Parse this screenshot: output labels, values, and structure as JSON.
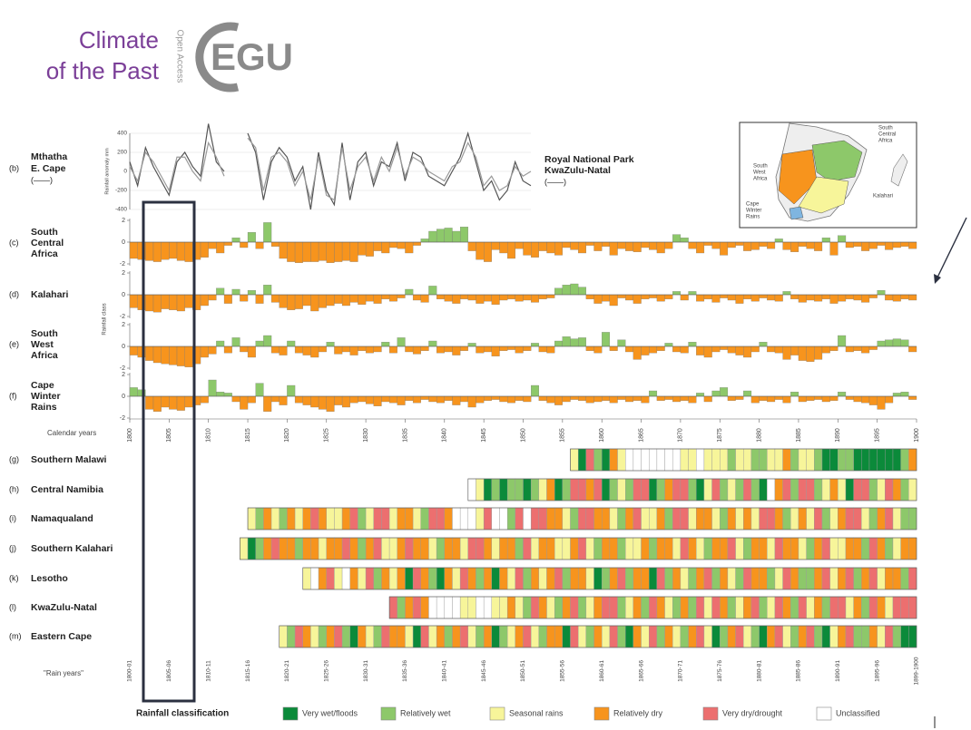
{
  "logo": {
    "line1": "Climate",
    "line2": "of the Past",
    "open": "Open Access",
    "egu": "EGU"
  },
  "anomaly": {
    "panel": "(b)",
    "left_label": [
      "Mthatha",
      "E. Cape"
    ],
    "left_key": "(——)",
    "right_label": [
      "Royal National Park",
      "KwaZulu-Natal"
    ],
    "right_key": "(——)",
    "ylabel": "Rainfall anomaly mm",
    "ylim": [
      -400,
      400
    ],
    "yticks": [
      400,
      200,
      0,
      -200,
      -400
    ],
    "xlim": [
      1800,
      1851
    ],
    "x": [
      1800,
      1801,
      1802,
      1803,
      1804,
      1805,
      1806,
      1807,
      1808,
      1809,
      1810,
      1811,
      1812,
      1813,
      1814,
      1815,
      1816,
      1817,
      1818,
      1819,
      1820,
      1821,
      1822,
      1823,
      1824,
      1825,
      1826,
      1827,
      1828,
      1829,
      1830,
      1831,
      1832,
      1833,
      1834,
      1835,
      1836,
      1837,
      1838,
      1839,
      1840,
      1841,
      1842,
      1843,
      1844,
      1845,
      1846,
      1847,
      1848,
      1849,
      1850,
      1851
    ],
    "series": [
      {
        "color": "#555555",
        "values": [
          100,
          -150,
          250,
          50,
          -100,
          -250,
          100,
          200,
          50,
          -50,
          500,
          100,
          0,
          null,
          null,
          400,
          200,
          -300,
          100,
          250,
          150,
          -100,
          50,
          -400,
          200,
          -200,
          -350,
          300,
          -300,
          100,
          200,
          -150,
          100,
          50,
          300,
          -100,
          200,
          150,
          -50,
          -100,
          -150,
          0,
          150,
          400,
          100,
          -200,
          -100,
          -300,
          -200,
          100,
          -100,
          -150
        ]
      },
      {
        "color": "#9a9a9a",
        "values": [
          50,
          -100,
          200,
          100,
          -50,
          -200,
          150,
          150,
          0,
          -100,
          300,
          150,
          -50,
          null,
          null,
          350,
          250,
          -200,
          150,
          200,
          100,
          -150,
          0,
          -300,
          150,
          -250,
          -300,
          250,
          -200,
          50,
          150,
          -100,
          150,
          0,
          250,
          -50,
          150,
          100,
          0,
          -50,
          -100,
          50,
          100,
          300,
          150,
          -150,
          -50,
          -200,
          -150,
          50,
          -50,
          0
        ]
      }
    ]
  },
  "class_panels": {
    "ylabel": "Rainfall class",
    "ylim": [
      -2,
      2
    ],
    "yticks": [
      2,
      0,
      -2
    ],
    "xlim": [
      1800,
      1900
    ],
    "xlabel": "Calendar years",
    "xticks": [
      1800,
      1805,
      1810,
      1815,
      1820,
      1825,
      1830,
      1835,
      1840,
      1845,
      1850,
      1855,
      1860,
      1865,
      1870,
      1875,
      1880,
      1885,
      1890,
      1895,
      1900
    ],
    "start": 1800,
    "positive_color": "#8dc86a",
    "negative_color": "#f7941d",
    "panels": [
      {
        "id": "(c)",
        "name": [
          "South",
          "Central",
          "Africa"
        ],
        "values": [
          -1.5,
          -1.6,
          -1.7,
          -1.8,
          -1.6,
          -1.5,
          -1.7,
          -1.8,
          -1.6,
          -1.4,
          -0.6,
          -1.0,
          -0.3,
          0.4,
          -0.5,
          0.9,
          -0.6,
          1.8,
          -0.4,
          -1.5,
          -1.8,
          -1.9,
          -1.8,
          -1.8,
          -1.7,
          -1.9,
          -1.8,
          -1.7,
          -1.8,
          -1.2,
          -1.3,
          -0.8,
          -1.0,
          -0.5,
          -0.6,
          -1.0,
          -0.3,
          0.3,
          1.0,
          1.2,
          1.3,
          1.0,
          1.4,
          -0.8,
          -1.6,
          -1.8,
          -0.7,
          -1.0,
          -1.5,
          -0.6,
          -1.2,
          -1.4,
          -0.8,
          -1.0,
          -1.2,
          -0.5,
          -0.7,
          -1.0,
          -0.3,
          -0.8,
          -0.4,
          -1.2,
          -0.6,
          -0.8,
          -0.9,
          -0.5,
          -0.7,
          -1.0,
          -0.6,
          0.7,
          0.4,
          -0.6,
          -1.0,
          -0.3,
          -0.6,
          -1.2,
          -0.5,
          -0.3,
          -0.8,
          -0.7,
          -0.4,
          -0.6,
          0.3,
          -0.7,
          -0.9,
          -0.4,
          -0.6,
          -0.8,
          0.4,
          -1.2,
          0.6,
          -0.5,
          -0.4,
          -0.8,
          -0.6,
          -0.3,
          -0.7,
          -0.5,
          -0.4,
          -0.6
        ]
      },
      {
        "id": "(d)",
        "name": [
          "Kalahari"
        ],
        "values": [
          -1.2,
          -1.4,
          -1.5,
          -1.6,
          -1.3,
          -1.4,
          -1.5,
          -1.2,
          -1.4,
          -1.0,
          -0.5,
          0.6,
          -0.8,
          0.5,
          -0.6,
          0.4,
          -0.8,
          0.9,
          -0.7,
          -1.2,
          -1.4,
          -1.3,
          -1.0,
          -1.5,
          -1.2,
          -1.0,
          -0.8,
          -1.0,
          -0.7,
          -0.9,
          -0.6,
          -0.8,
          -0.4,
          -0.6,
          -0.3,
          0.5,
          -0.5,
          -0.7,
          0.8,
          -0.4,
          -0.6,
          -0.8,
          -0.4,
          -0.5,
          -0.8,
          -0.6,
          -0.9,
          -0.5,
          -0.4,
          -0.6,
          -0.5,
          -0.7,
          -0.4,
          -0.3,
          0.6,
          0.9,
          1.0,
          0.7,
          -0.4,
          -0.8,
          -0.6,
          -1.0,
          -0.3,
          -0.5,
          -0.8,
          -0.4,
          -0.3,
          -0.6,
          -0.4,
          0.3,
          -0.5,
          0.3,
          -0.6,
          -0.4,
          -0.7,
          -0.3,
          -0.5,
          -0.8,
          -0.4,
          -0.6,
          -0.3,
          -0.5,
          -0.6,
          0.3,
          -0.4,
          -0.7,
          -0.5,
          -0.6,
          -0.4,
          -0.8,
          -0.6,
          -0.4,
          -0.5,
          -0.7,
          -0.3,
          0.4,
          -0.5,
          -0.6,
          -0.4,
          -0.5
        ]
      },
      {
        "id": "(e)",
        "name": [
          "South",
          "West",
          "Africa"
        ],
        "values": [
          -0.8,
          -1.0,
          -1.3,
          -1.5,
          -1.6,
          -1.7,
          -1.8,
          -1.9,
          -1.6,
          -1.0,
          -0.7,
          0.5,
          -0.6,
          0.8,
          -0.5,
          -1.0,
          0.5,
          1.0,
          -0.6,
          -0.8,
          0.5,
          -0.6,
          -0.8,
          -1.0,
          -0.5,
          0.4,
          -0.7,
          -0.5,
          -0.8,
          -0.4,
          -0.6,
          -0.5,
          0.4,
          -0.6,
          0.8,
          -0.5,
          -0.7,
          -0.4,
          0.5,
          -0.6,
          -0.5,
          -0.8,
          -0.4,
          0.3,
          -0.6,
          -0.5,
          -0.9,
          -0.4,
          -0.3,
          -0.6,
          -0.4,
          0.3,
          -0.5,
          -0.6,
          0.5,
          0.9,
          0.7,
          0.8,
          -0.4,
          -0.6,
          1.3,
          -0.4,
          0.6,
          -0.5,
          -1.2,
          -0.8,
          -0.6,
          -0.4,
          0.3,
          -0.5,
          -0.6,
          0.4,
          -0.8,
          -1.0,
          -0.5,
          -0.3,
          -0.6,
          -0.8,
          -1.0,
          -0.5,
          0.4,
          -0.5,
          -0.6,
          -1.2,
          -0.8,
          -1.3,
          -1.4,
          -1.2,
          -0.6,
          -0.4,
          1.0,
          -0.5,
          -0.4,
          -0.6,
          -0.3,
          0.5,
          0.6,
          0.7,
          0.6,
          -0.5
        ]
      },
      {
        "id": "(f)",
        "name": [
          "Cape",
          "Winter",
          "Rains"
        ],
        "values": [
          0.8,
          0.6,
          -1.2,
          -1.4,
          -1.0,
          -1.2,
          -1.3,
          -1.0,
          -0.8,
          -0.6,
          1.5,
          0.4,
          0.3,
          -0.5,
          -1.2,
          -0.6,
          1.2,
          -1.4,
          -0.5,
          -0.8,
          1.0,
          -0.6,
          -0.8,
          -1.0,
          -1.2,
          -1.4,
          -0.8,
          -1.0,
          -0.6,
          -0.5,
          -0.7,
          -0.9,
          -0.5,
          -0.6,
          -0.8,
          -0.4,
          -0.6,
          -0.3,
          -0.5,
          -0.6,
          -0.4,
          -0.8,
          -0.5,
          -1.0,
          -0.6,
          -0.4,
          -0.3,
          -0.5,
          -0.6,
          -0.4,
          -0.5,
          1.0,
          -0.4,
          -0.6,
          -0.8,
          -0.5,
          -0.3,
          -0.4,
          -0.6,
          -0.5,
          -0.4,
          -0.6,
          -0.3,
          -0.5,
          -0.4,
          -0.6,
          0.5,
          -0.4,
          -0.3,
          -0.5,
          -0.4,
          -0.6,
          0.3,
          -0.5,
          0.5,
          0.8,
          -0.4,
          -0.3,
          0.5,
          -0.6,
          -0.4,
          -0.5,
          -0.3,
          -0.6,
          0.4,
          -0.5,
          -0.4,
          -0.3,
          -0.5,
          -0.4,
          0.4,
          -0.3,
          -0.5,
          -0.6,
          -0.8,
          -1.2,
          -0.6,
          0.3,
          0.4,
          -0.3
        ]
      }
    ]
  },
  "rain": {
    "xlabel": "\"Rain years\"",
    "xticks": [
      "1800-01",
      "1805-06",
      "1810-11",
      "1815-16",
      "1820-21",
      "1825-26",
      "1830-31",
      "1835-36",
      "1840-41",
      "1845-46",
      "1850-51",
      "1855-56",
      "1860-61",
      "1865-66",
      "1870-71",
      "1875-76",
      "1880-81",
      "1885-86",
      "1890-91",
      "1895-96",
      "1899-1900"
    ],
    "rows": [
      {
        "id": "(g)",
        "name": "Southern Malawi",
        "start": 1856,
        "classes": [
          2,
          0,
          4,
          1,
          0,
          3,
          2,
          5,
          5,
          5,
          5,
          5,
          5,
          5,
          2,
          2,
          5,
          2,
          2,
          2,
          1,
          2,
          2,
          1,
          1,
          2,
          2,
          3,
          1,
          2,
          2,
          1,
          0,
          0,
          1,
          1,
          0,
          0,
          0,
          0,
          0,
          0,
          1,
          3
        ]
      },
      {
        "id": "(h)",
        "name": "Central Namibia",
        "start": 1843,
        "classes": [
          5,
          2,
          0,
          1,
          0,
          1,
          1,
          0,
          1,
          2,
          3,
          0,
          1,
          4,
          4,
          3,
          4,
          0,
          1,
          2,
          1,
          4,
          4,
          0,
          1,
          3,
          4,
          4,
          1,
          0,
          2,
          4,
          1,
          2,
          1,
          4,
          1,
          0,
          5,
          3,
          4,
          1,
          4,
          4,
          1,
          2,
          3,
          2,
          0,
          4,
          4,
          1,
          2,
          4,
          3,
          1,
          2
        ]
      },
      {
        "id": "(i)",
        "name": "Namaqualand",
        "start": 1815,
        "classes": [
          2,
          1,
          3,
          2,
          1,
          3,
          2,
          3,
          4,
          3,
          2,
          2,
          3,
          4,
          1,
          2,
          4,
          4,
          2,
          3,
          3,
          2,
          1,
          4,
          4,
          3,
          5,
          5,
          5,
          2,
          4,
          5,
          5,
          1,
          4,
          5,
          4,
          4,
          3,
          3,
          2,
          1,
          4,
          4,
          3,
          3,
          2,
          1,
          3,
          4,
          2,
          2,
          3,
          1,
          4,
          4,
          2,
          3,
          3,
          2,
          1,
          3,
          2,
          3,
          2,
          4,
          4,
          3,
          1,
          2,
          3,
          2,
          4,
          1,
          2,
          3,
          4,
          4,
          2,
          1,
          3,
          4,
          2,
          1,
          1
        ]
      },
      {
        "id": "(j)",
        "name": "Southern Kalahari",
        "start": 1814,
        "classes": [
          2,
          0,
          1,
          3,
          4,
          3,
          3,
          1,
          3,
          3,
          2,
          3,
          3,
          4,
          3,
          1,
          3,
          4,
          2,
          2,
          3,
          4,
          3,
          3,
          2,
          1,
          3,
          3,
          2,
          4,
          4,
          3,
          2,
          3,
          3,
          1,
          4,
          2,
          3,
          3,
          2,
          2,
          3,
          4,
          2,
          1,
          3,
          3,
          1,
          2,
          2,
          3,
          1,
          3,
          3,
          2,
          4,
          3,
          2,
          1,
          3,
          3,
          4,
          2,
          1,
          3,
          3,
          2,
          4,
          3,
          3,
          2,
          1,
          3,
          4,
          2,
          2,
          3,
          3,
          1,
          4,
          3,
          1,
          2,
          3,
          3
        ]
      },
      {
        "id": "(k)",
        "name": "Lesotho",
        "start": 1822,
        "classes": [
          2,
          5,
          3,
          4,
          2,
          5,
          3,
          2,
          4,
          1,
          3,
          2,
          3,
          0,
          4,
          3,
          1,
          0,
          3,
          2,
          4,
          3,
          1,
          3,
          0,
          3,
          2,
          4,
          1,
          3,
          2,
          3,
          4,
          1,
          3,
          3,
          2,
          0,
          1,
          3,
          4,
          1,
          3,
          3,
          0,
          4,
          1,
          3,
          2,
          1,
          3,
          4,
          1,
          3,
          2,
          1,
          4,
          3,
          3,
          1,
          2,
          4,
          3,
          1,
          1,
          3,
          4,
          2,
          3,
          4,
          1,
          3,
          4,
          2,
          3,
          3,
          1,
          4
        ]
      },
      {
        "id": "(l)",
        "name": "KwaZulu-Natal",
        "start": 1833,
        "classes": [
          4,
          1,
          3,
          4,
          3,
          5,
          5,
          5,
          5,
          2,
          2,
          5,
          5,
          2,
          2,
          3,
          2,
          1,
          4,
          3,
          2,
          1,
          3,
          4,
          1,
          2,
          3,
          4,
          4,
          1,
          2,
          3,
          1,
          4,
          3,
          2,
          1,
          3,
          1,
          4,
          2,
          4,
          3,
          1,
          2,
          3,
          4,
          1,
          2,
          4,
          3,
          1,
          4,
          2,
          3,
          1,
          4,
          4,
          2,
          3,
          1,
          4,
          3,
          2,
          4,
          4,
          4
        ]
      },
      {
        "id": "(m)",
        "name": "Eastern Cape",
        "start": 1819,
        "classes": [
          2,
          1,
          4,
          3,
          2,
          1,
          3,
          4,
          1,
          0,
          3,
          2,
          1,
          4,
          3,
          3,
          2,
          0,
          4,
          2,
          3,
          1,
          3,
          4,
          2,
          1,
          3,
          0,
          1,
          2,
          3,
          4,
          2,
          1,
          3,
          3,
          0,
          4,
          2,
          1,
          3,
          2,
          4,
          1,
          0,
          3,
          2,
          4,
          1,
          3,
          2,
          1,
          3,
          4,
          2,
          0,
          1,
          3,
          4,
          2,
          1,
          0,
          3,
          4,
          2,
          1,
          3,
          4,
          1,
          0,
          2,
          3,
          4,
          1,
          1,
          3,
          2,
          4,
          1,
          0,
          0
        ]
      }
    ]
  },
  "legend": {
    "title": "Rainfall classification",
    "classes": [
      {
        "name": "Very wet/floods",
        "color": "#0b8a3a"
      },
      {
        "name": "Relatively wet",
        "color": "#8dc86a"
      },
      {
        "name": "Seasonal rains",
        "color": "#f7f59a"
      },
      {
        "name": "Relatively dry",
        "color": "#f7941d"
      },
      {
        "name": "Very dry/drought",
        "color": "#ec6f6f"
      },
      {
        "name": "Unclassified",
        "color": "#ffffff"
      }
    ]
  },
  "map": {
    "south_central": [
      "South",
      "Central",
      "Africa"
    ],
    "south_west": [
      "South",
      "West",
      "Africa"
    ],
    "kalahari": "Kalahari",
    "cape": [
      "Cape",
      "Winter",
      "Rains"
    ]
  }
}
